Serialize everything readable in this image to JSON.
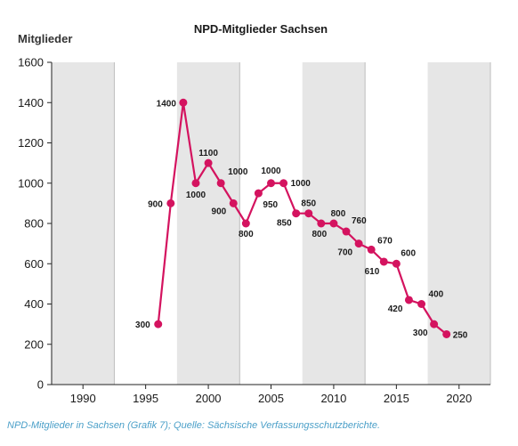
{
  "chart_data": {
    "type": "line",
    "title": "NPD-Mitglieder Sachsen",
    "xlabel": "",
    "ylabel": "Mitglieder",
    "xlim": [
      1987.5,
      2022.5
    ],
    "ylim": [
      0,
      1600
    ],
    "xticks": [
      1990,
      1995,
      2000,
      2005,
      2010,
      2015,
      2020
    ],
    "yticks": [
      0,
      200,
      400,
      600,
      800,
      1000,
      1200,
      1400,
      1600
    ],
    "shaded_x_ranges": [
      [
        1987.5,
        1992.5
      ],
      [
        1997.5,
        2002.5
      ],
      [
        2007.5,
        2012.5
      ],
      [
        2017.5,
        2022.5
      ]
    ],
    "shade_color": "#e6e6e6",
    "line_color": "#d4135f",
    "grid": false,
    "series": [
      {
        "x": [
          1996,
          1997,
          1998,
          1999,
          2000,
          2001,
          2002,
          2003,
          2004,
          2005,
          2006,
          2007,
          2008,
          2009,
          2010,
          2011,
          2012,
          2013,
          2014,
          2015,
          2016,
          2017,
          2018,
          2019
        ],
        "values": [
          300,
          900,
          1400,
          1000,
          1100,
          1000,
          900,
          800,
          950,
          1000,
          1000,
          850,
          850,
          800,
          800,
          760,
          700,
          670,
          610,
          600,
          420,
          400,
          300,
          250
        ],
        "labels": [
          "300",
          "900",
          "1400",
          "1000",
          "1100",
          "1000",
          "900",
          "800",
          "950",
          "1000",
          "1000",
          "850",
          "850",
          "800",
          "800",
          "760",
          "700",
          "670",
          "610",
          "600",
          "420",
          "400",
          "300",
          "250"
        ]
      }
    ]
  },
  "caption": "NPD-Mitglieder in Sachsen (Grafik 7); Quelle: Sächsische Verfassungsschutzberichte."
}
